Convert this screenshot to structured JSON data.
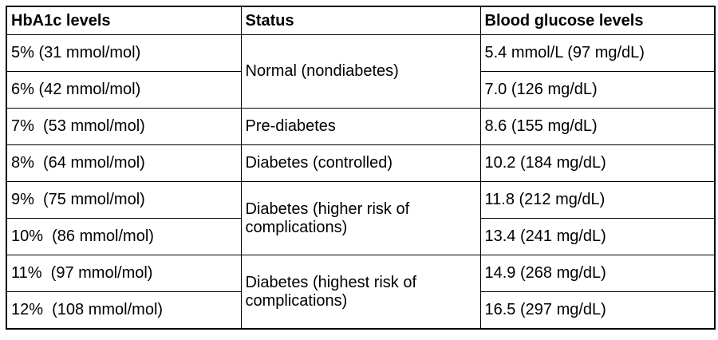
{
  "colors": {
    "background": "#ffffff",
    "border": "#000000",
    "text": "#000000"
  },
  "chart_data": {
    "type": "table",
    "columns": [
      "HbA1c levels",
      "Status",
      "Blood glucose levels"
    ],
    "rows": [
      {
        "hba1c": "5% (31 mmol/mol)",
        "status": "Normal (nondiabetes)",
        "status_rowspan": 2,
        "glucose": "5.4 mmol/L (97 mg/dL)"
      },
      {
        "hba1c": "6% (42 mmol/mol)",
        "glucose": "7.0 (126 mg/dL)"
      },
      {
        "hba1c": "7%  (53 mmol/mol)",
        "status": "Pre-diabetes",
        "status_rowspan": 1,
        "glucose": "8.6 (155 mg/dL)"
      },
      {
        "hba1c": "8%  (64 mmol/mol)",
        "status": "Diabetes (controlled)",
        "status_rowspan": 1,
        "glucose": "10.2 (184 mg/dL)"
      },
      {
        "hba1c": "9%  (75 mmol/mol)",
        "status": "Diabetes (higher risk of complications)",
        "status_rowspan": 2,
        "glucose": "11.8 (212 mg/dL)"
      },
      {
        "hba1c": "10%  (86 mmol/mol)",
        "glucose": "13.4 (241 mg/dL)"
      },
      {
        "hba1c": "11%  (97 mmol/mol)",
        "status": "Diabetes (highest risk of complications)",
        "status_rowspan": 2,
        "glucose": "14.9 (268 mg/dL)"
      },
      {
        "hba1c": "12%  (108 mmol/mol)",
        "glucose": "16.5 (297 mg/dL)"
      }
    ]
  }
}
